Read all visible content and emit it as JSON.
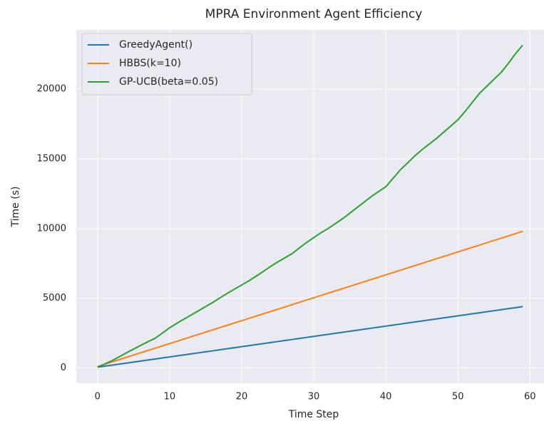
{
  "chart_data": {
    "type": "line",
    "title": "MPRA Environment Agent Efficiency",
    "x_label": "Time Step",
    "y_label": "Time (s)",
    "x": [
      0,
      1,
      2,
      3,
      4,
      5,
      6,
      7,
      8,
      9,
      10,
      11,
      12,
      13,
      14,
      15,
      16,
      17,
      18,
      19,
      20,
      21,
      22,
      23,
      24,
      25,
      26,
      27,
      28,
      29,
      30,
      31,
      32,
      33,
      34,
      35,
      36,
      37,
      38,
      39,
      40,
      41,
      42,
      43,
      44,
      45,
      46,
      47,
      48,
      49,
      50,
      51,
      52,
      53,
      54,
      55,
      56,
      57,
      58,
      59
    ],
    "series": [
      {
        "name": "GreedyAgent()",
        "color": "#1f77b4",
        "values": [
          50,
          124,
          197,
          271,
          345,
          419,
          492,
          566,
          640,
          713,
          787,
          861,
          934,
          1008,
          1082,
          1156,
          1229,
          1303,
          1377,
          1450,
          1524,
          1598,
          1671,
          1745,
          1819,
          1893,
          1966,
          2040,
          2114,
          2187,
          2261,
          2335,
          2408,
          2482,
          2556,
          2630,
          2703,
          2777,
          2851,
          2924,
          2998,
          3072,
          3145,
          3219,
          3293,
          3367,
          3440,
          3514,
          3588,
          3661,
          3735,
          3809,
          3882,
          3956,
          4030,
          4104,
          4177,
          4251,
          4325,
          4398
        ]
      },
      {
        "name": "HBBS(k=10)",
        "color": "#ff7f0e",
        "values": [
          100,
          264,
          429,
          593,
          758,
          922,
          1086,
          1251,
          1415,
          1580,
          1744,
          1908,
          2073,
          2237,
          2402,
          2566,
          2730,
          2895,
          3059,
          3224,
          3388,
          3552,
          3717,
          3881,
          4046,
          4210,
          4374,
          4539,
          4703,
          4868,
          5032,
          5196,
          5361,
          5525,
          5690,
          5854,
          6018,
          6183,
          6347,
          6512,
          6676,
          6840,
          7005,
          7169,
          7334,
          7498,
          7662,
          7827,
          7991,
          8156,
          8320,
          8484,
          8649,
          8813,
          8978,
          9142,
          9306,
          9471,
          9635,
          9800
        ]
      },
      {
        "name": "GP-UCB(beta=0.05)",
        "color": "#2ca02c",
        "values": [
          50,
          280,
          520,
          800,
          1080,
          1350,
          1620,
          1880,
          2130,
          2500,
          2880,
          3200,
          3500,
          3800,
          4100,
          4400,
          4700,
          5030,
          5350,
          5650,
          5950,
          6250,
          6580,
          6920,
          7280,
          7600,
          7900,
          8200,
          8600,
          9000,
          9350,
          9700,
          10000,
          10350,
          10700,
          11100,
          11500,
          11900,
          12300,
          12650,
          13000,
          13600,
          14200,
          14700,
          15200,
          15650,
          16050,
          16450,
          16900,
          17350,
          17800,
          18400,
          19050,
          19700,
          20200,
          20700,
          21200,
          21850,
          22550,
          23150
        ]
      }
    ],
    "xlim": [
      -2.95,
      61.95
    ],
    "ylim": [
      -1100,
      24250
    ],
    "xticks": [
      0,
      10,
      20,
      30,
      40,
      50,
      60
    ],
    "yticks": [
      0,
      5000,
      10000,
      15000,
      20000
    ],
    "grid": true,
    "legend": "upper left"
  }
}
